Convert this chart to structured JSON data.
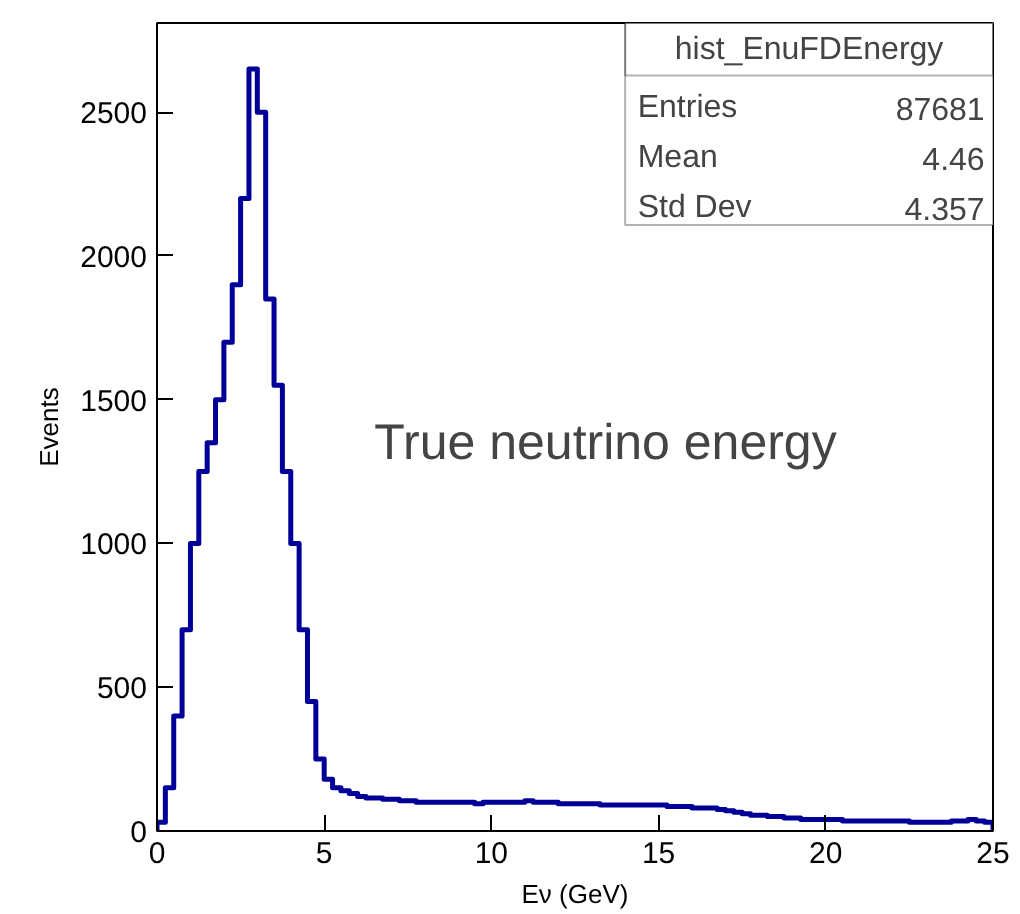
{
  "chart_data": {
    "type": "histogram",
    "xlabel": "Eν (GeV)",
    "ylabel": "Events",
    "bins": [
      0,
      0.25,
      0.5,
      0.75,
      1,
      1.25,
      1.5,
      1.75,
      2,
      2.25,
      2.5,
      2.75,
      3,
      3.25,
      3.5,
      3.75,
      4,
      4.25,
      4.5,
      4.75,
      5,
      5.25,
      5.5,
      5.75,
      6,
      6.25,
      6.5,
      6.75,
      7,
      7.25,
      7.5,
      7.75,
      8,
      8.25,
      8.5,
      8.75,
      9,
      9.25,
      9.5,
      9.75,
      10,
      10.25,
      10.5,
      10.75,
      11,
      11.25,
      11.5,
      11.75,
      12,
      12.25,
      12.5,
      12.75,
      13,
      13.25,
      13.5,
      13.75,
      14,
      14.25,
      14.5,
      14.75,
      15,
      15.25,
      15.5,
      15.75,
      16,
      16.25,
      16.5,
      16.75,
      17,
      17.25,
      17.5,
      17.75,
      18,
      18.25,
      18.5,
      18.75,
      19,
      19.25,
      19.5,
      19.75,
      20,
      20.25,
      20.5,
      20.75,
      21,
      21.25,
      21.5,
      21.75,
      22,
      22.25,
      22.5,
      22.75,
      23,
      23.25,
      23.5,
      23.75,
      24,
      24.25,
      24.5,
      24.75,
      25
    ],
    "values": [
      30,
      150,
      400,
      700,
      1000,
      1250,
      1350,
      1500,
      1700,
      1900,
      2200,
      2650,
      2500,
      1850,
      1550,
      1250,
      1000,
      700,
      450,
      250,
      180,
      150,
      140,
      130,
      120,
      115,
      115,
      110,
      110,
      105,
      105,
      100,
      100,
      100,
      100,
      100,
      100,
      100,
      95,
      100,
      100,
      100,
      100,
      100,
      105,
      100,
      100,
      100,
      95,
      95,
      95,
      95,
      95,
      90,
      90,
      90,
      90,
      90,
      90,
      90,
      90,
      85,
      85,
      85,
      80,
      80,
      80,
      75,
      70,
      65,
      60,
      55,
      55,
      50,
      50,
      45,
      45,
      40,
      40,
      40,
      40,
      40,
      35,
      35,
      35,
      35,
      35,
      35,
      35,
      35,
      30,
      30,
      30,
      30,
      30,
      35,
      35,
      40,
      35,
      30
    ],
    "color": "#000099",
    "xlim": [
      0,
      25
    ],
    "ylim": [
      0,
      2810
    ],
    "xticks": [
      0,
      5,
      10,
      15,
      20,
      25
    ],
    "yticks": [
      0,
      500,
      1000,
      1500,
      2000,
      2500
    ],
    "grid": false,
    "annotations": [
      "hist_EnuFDEnergy",
      "Entries",
      "87681",
      "Mean",
      "4.46",
      "Std Dev",
      "4.357",
      "True neutrino energy"
    ]
  }
}
